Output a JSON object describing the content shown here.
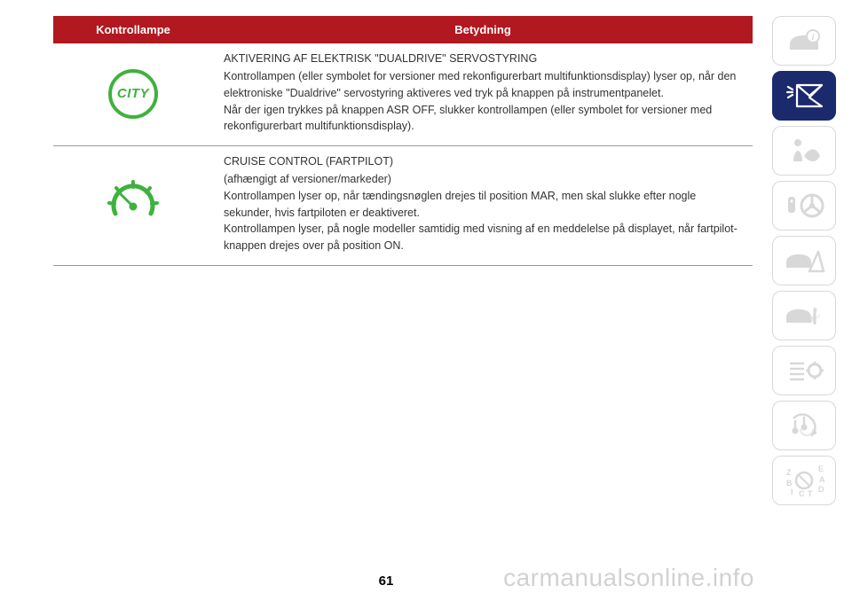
{
  "table": {
    "header": {
      "lamp": "Kontrollampe",
      "meaning": "Betydning"
    },
    "rows": [
      {
        "icon_label": "CITY",
        "title": "AKTIVERING AF ELEKTRISK \"DUALDRIVE\" SERVOSTYRING",
        "body": "Kontrollampen (eller symbolet for versioner med rekonfigurerbart multifunktionsdisplay) lyser op, når den elektroniske \"Dualdrive\" servostyring aktiveres ved tryk på knappen på instrumentpanelet.\nNår der igen trykkes på knappen ASR OFF, slukker kontrollampen (eller symbolet for versioner med rekonfigurerbart multifunktionsdisplay)."
      },
      {
        "title": "CRUISE CONTROL (FARTPILOT)",
        "body": "(afhængigt af versioner/markeder)\nKontrollampen lyser op, når tændingsnøglen drejes til position MAR, men skal slukke efter nogle sekunder, hvis fartpiloten er deaktiveret.\nKontrollampen lyser, på nogle modeller samtidig med visning af en meddelelse på displayet, når fartpilot-knappen drejes over på position ON."
      }
    ]
  },
  "page_number": "61",
  "watermark": "carmanualsonline.info",
  "colors": {
    "header_bg": "#b2181f",
    "active_tab_bg": "#1a2a6c",
    "icon_green": "#3fb13f",
    "inactive_icon": "#d8d8d8"
  }
}
